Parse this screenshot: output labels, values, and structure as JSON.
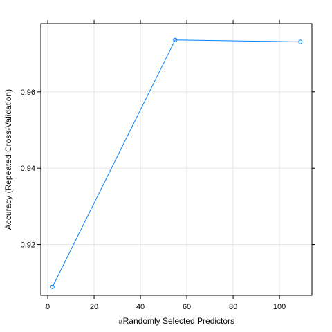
{
  "chart_data": {
    "type": "line",
    "title": "",
    "xlabel": "#Randomly Selected Predictors",
    "ylabel": "Accuracy (Repeated Cross-Validation)",
    "xlim": [
      -3,
      114
    ],
    "ylim": [
      0.9067,
      0.9779
    ],
    "xticks": [
      0,
      20,
      40,
      60,
      80,
      100
    ],
    "xtick_labels": [
      "0",
      "20",
      "40",
      "60",
      "80",
      "100"
    ],
    "yticks": [
      0.92,
      0.94,
      0.96
    ],
    "ytick_labels": [
      "0.92",
      "0.94",
      "0.96"
    ],
    "grid": true,
    "series": [
      {
        "x": [
          2,
          55,
          109
        ],
        "y": [
          0.9089,
          0.9736,
          0.9731
        ],
        "color": "#0080FF",
        "marker": "open-circle"
      }
    ]
  }
}
